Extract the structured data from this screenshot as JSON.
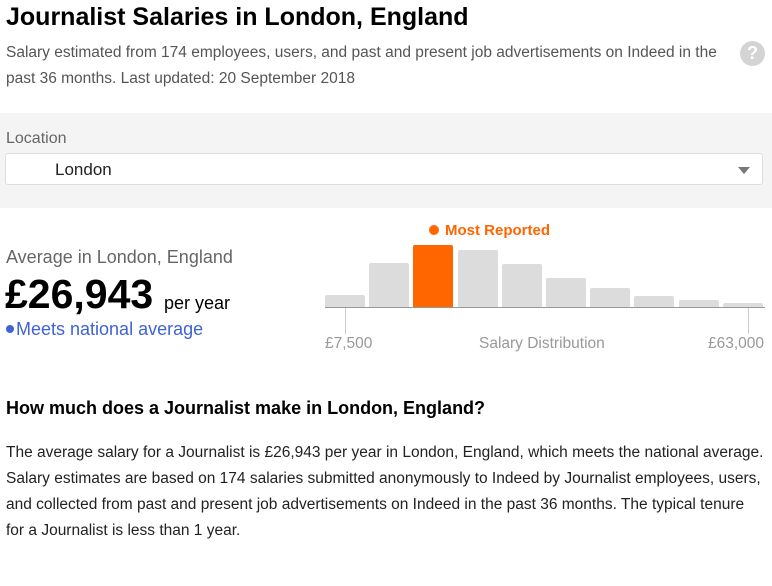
{
  "header": {
    "title": "Journalist Salaries in London, England",
    "subtitle": "Salary estimated from 174 employees, users, and past and present job advertisements on Indeed in the past 36 months. Last updated: 20 September 2018",
    "help_icon": "?"
  },
  "location": {
    "label": "Location",
    "selected": "London"
  },
  "average": {
    "label": "Average in London, England",
    "amount": "£26,943",
    "unit": "per year",
    "comparison": "Meets national average"
  },
  "chart_data": {
    "type": "bar",
    "title": "Salary Distribution",
    "xlabel": "Salary Distribution",
    "x_min_label": "£7,500",
    "x_max_label": "£63,000",
    "highlight_label": "Most Reported",
    "highlight_index": 2,
    "categories": [
      "bin1",
      "bin2",
      "bin3",
      "bin4",
      "bin5",
      "bin6",
      "bin7",
      "bin8",
      "bin9",
      "bin10"
    ],
    "values": [
      12,
      44,
      62,
      57,
      43,
      29,
      19,
      11,
      7,
      4
    ],
    "colors": {
      "default": "#dcdcdc",
      "highlight": "#ff6600"
    },
    "grid": false
  },
  "faq": {
    "heading": "How much does a Journalist make in London, England?",
    "body": "The average salary for a Journalist is £26,943 per year in London, England, which meets the national average. Salary estimates are based on 174 salaries submitted anonymously to Indeed by Journalist employees, users, and collected from past and present job advertisements on Indeed in the past 36 months. The typical tenure for a Journalist is less than 1 year."
  }
}
